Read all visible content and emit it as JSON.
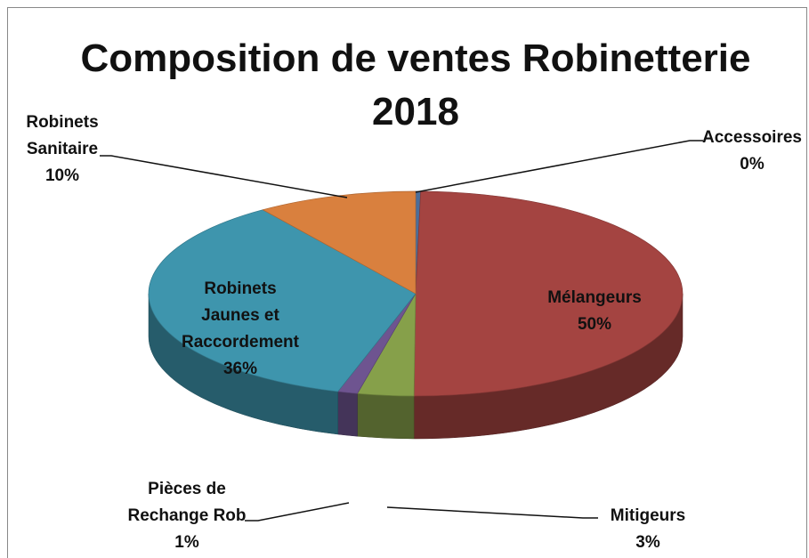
{
  "chart_data": {
    "type": "pie3d",
    "title": "Composition de ventes Robinetterie 2018",
    "categories": [
      "Accessoires",
      "Mélangeurs",
      "Mitigeurs",
      "Pièces de\nRechange Rob",
      "Robinets\nJaunes et\nRaccordement",
      "Robinets\nSanitaire"
    ],
    "values": [
      0.3,
      49.8,
      3.4,
      1.2,
      35.6,
      9.7
    ],
    "value_labels": [
      "0%",
      "50%",
      "3%",
      "1%",
      "36%",
      "10%"
    ],
    "colors": [
      "#4a6e9b",
      "#a44441",
      "#86a04a",
      "#6e5490",
      "#3e95ad",
      "#d9803e"
    ]
  }
}
